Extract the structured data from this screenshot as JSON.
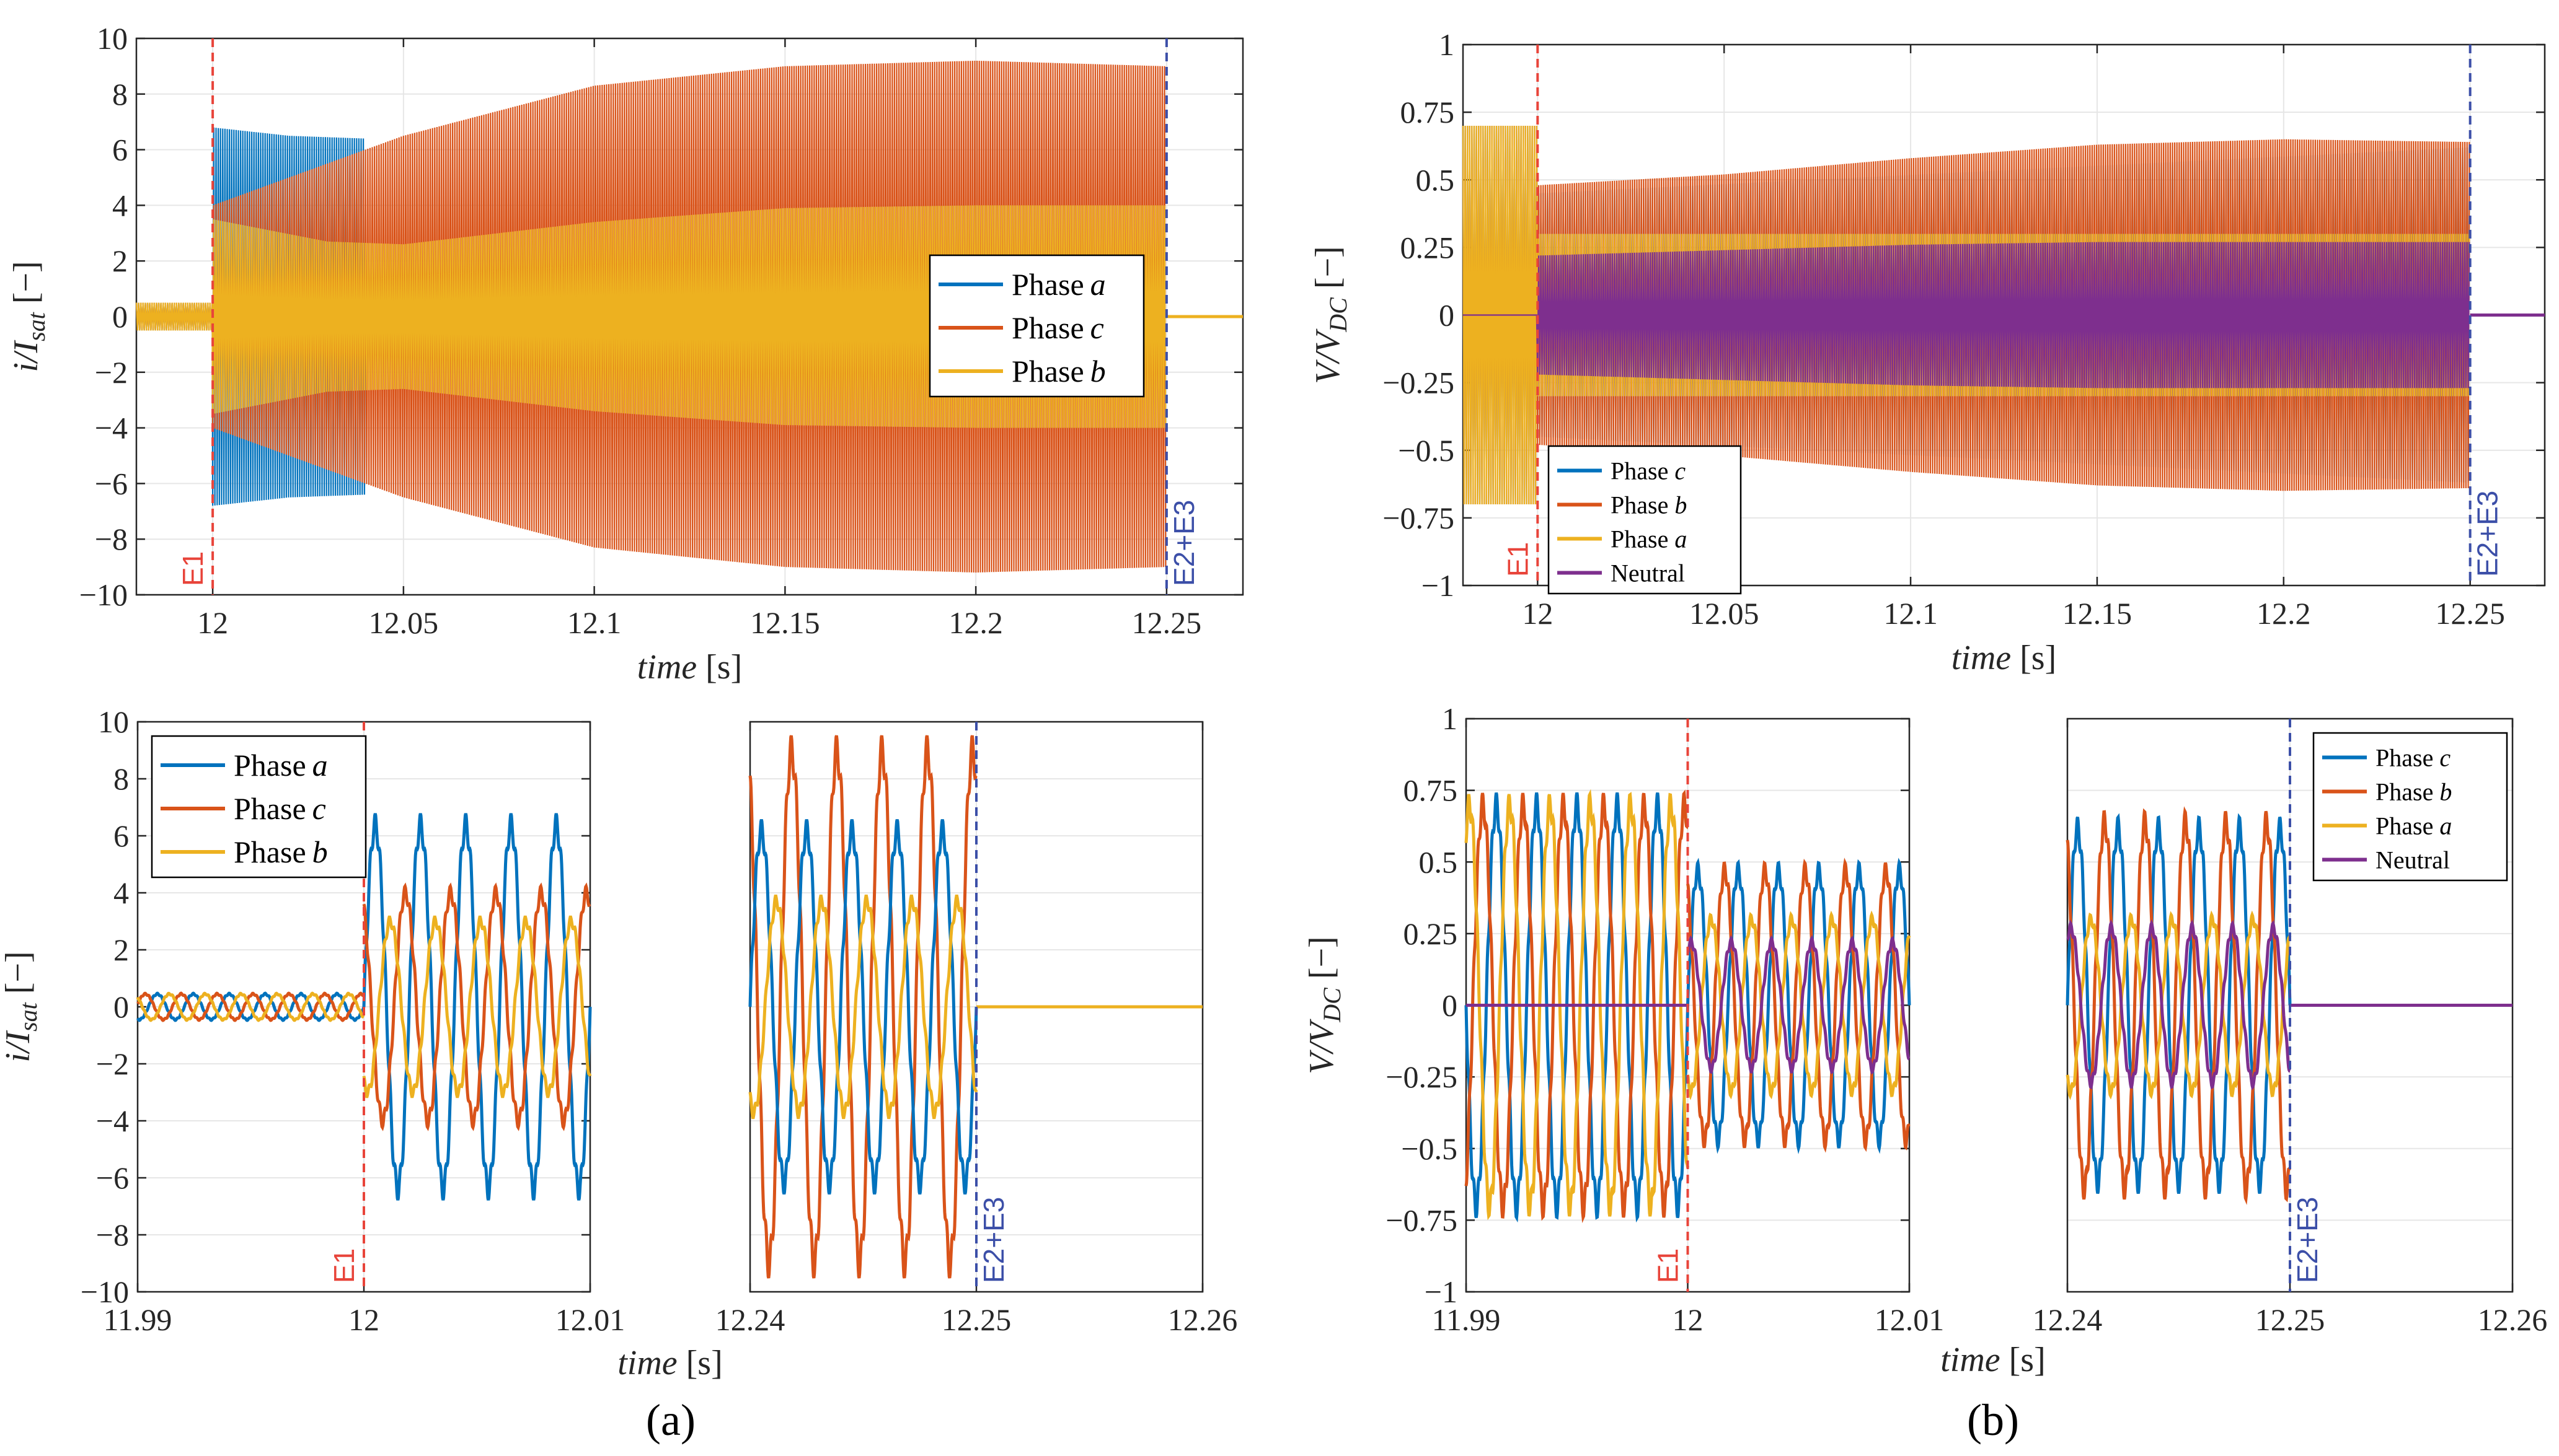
{
  "colors": {
    "phase_a": "#0072BD",
    "phase_c": "#D95319",
    "phase_b": "#EDB120",
    "neutral": "#7E2F8E",
    "event_e1": "#E8443A",
    "event_e23": "#3C4FA8",
    "grid": "#E6E6E6",
    "axis": "#262626"
  },
  "captions": {
    "a": "(a)",
    "b": "(b)"
  },
  "chart_data": [
    {
      "id": "a_top",
      "type": "line",
      "title": "",
      "xlabel_var": "time",
      "xlabel_unit": "[s]",
      "ylabel_var": "i/I",
      "ylabel_sub": "sat",
      "ylabel_unit": "[−]",
      "xlim": [
        11.98,
        12.27
      ],
      "ylim": [
        -10,
        10
      ],
      "xticks": [
        12,
        12.05,
        12.1,
        12.15,
        12.2,
        12.25
      ],
      "xtick_labels": [
        "12",
        "12.05",
        "12.1",
        "12.15",
        "12.2",
        "12.25"
      ],
      "yticks": [
        -10,
        -8,
        -6,
        -4,
        -2,
        0,
        2,
        4,
        6,
        8,
        10
      ],
      "ytick_labels": [
        "−10",
        "−8",
        "−6",
        "−4",
        "−2",
        "0",
        "2",
        "4",
        "6",
        "8",
        "10"
      ],
      "grid": true,
      "legend_position": "right",
      "legend": [
        {
          "label": "Phase",
          "italic": "a",
          "color_key": "phase_a"
        },
        {
          "label": "Phase",
          "italic": "c",
          "color_key": "phase_c"
        },
        {
          "label": "Phase",
          "italic": "b",
          "color_key": "phase_b"
        }
      ],
      "events": [
        {
          "label": "E1",
          "x": 12.0,
          "color_key": "event_e1"
        },
        {
          "label": "E2+E3",
          "x": 12.25,
          "color_key": "event_e23"
        }
      ],
      "series": [
        {
          "name": "Phase a",
          "color_key": "phase_a",
          "pre_amp": 0.5,
          "envelope_x": [
            12.0,
            12.02,
            12.04,
            12.0401
          ],
          "envelope_amp": [
            6.8,
            6.5,
            6.4,
            0
          ],
          "end_x": 12.25
        },
        {
          "name": "Phase c",
          "color_key": "phase_c",
          "pre_amp": 0.5,
          "envelope_x": [
            12.0,
            12.05,
            12.1,
            12.15,
            12.2,
            12.25
          ],
          "envelope_amp": [
            4.0,
            6.5,
            8.3,
            9.0,
            9.2,
            9.0
          ],
          "end_x": 12.25
        },
        {
          "name": "Phase b",
          "color_key": "phase_b",
          "pre_amp": 0.5,
          "envelope_x": [
            12.0,
            12.03,
            12.05,
            12.1,
            12.15,
            12.2,
            12.25
          ],
          "envelope_amp": [
            3.5,
            2.7,
            2.6,
            3.4,
            3.9,
            4.0,
            4.0
          ],
          "end_x": 12.25
        }
      ]
    },
    {
      "id": "b_top",
      "type": "line",
      "title": "",
      "xlabel_var": "time",
      "xlabel_unit": "[s]",
      "ylabel_var": "V/V",
      "ylabel_sub": "DC",
      "ylabel_unit": "[−]",
      "xlim": [
        11.98,
        12.27
      ],
      "ylim": [
        -1,
        1
      ],
      "xticks": [
        12,
        12.05,
        12.1,
        12.15,
        12.2,
        12.25
      ],
      "xtick_labels": [
        "12",
        "12.05",
        "12.1",
        "12.15",
        "12.2",
        "12.25"
      ],
      "yticks": [
        -1,
        -0.75,
        -0.5,
        -0.25,
        0,
        0.25,
        0.5,
        0.75,
        1
      ],
      "ytick_labels": [
        "−1",
        "−0.75",
        "−0.5",
        "−0.25",
        "0",
        "0.25",
        "0.5",
        "0.75",
        "1"
      ],
      "grid": true,
      "legend_position": "bottom-left",
      "legend": [
        {
          "label": "Phase",
          "italic": "c",
          "color_key": "phase_a"
        },
        {
          "label": "Phase",
          "italic": "b",
          "color_key": "phase_c"
        },
        {
          "label": "Phase",
          "italic": "a",
          "color_key": "phase_b"
        },
        {
          "label": "Neutral",
          "italic": "",
          "color_key": "neutral"
        }
      ],
      "events": [
        {
          "label": "E1",
          "x": 12.0,
          "color_key": "event_e1"
        },
        {
          "label": "E2+E3",
          "x": 12.25,
          "color_key": "event_e23"
        }
      ],
      "series": [
        {
          "name": "Phase b",
          "color_key": "phase_c",
          "pre_amp": 0.7,
          "envelope_x": [
            12.0,
            12.05,
            12.1,
            12.15,
            12.2,
            12.25
          ],
          "envelope_amp": [
            0.48,
            0.52,
            0.58,
            0.63,
            0.65,
            0.64
          ],
          "end_x": 12.25
        },
        {
          "name": "Phase a",
          "color_key": "phase_b",
          "pre_amp": 0.7,
          "envelope_x": [
            12.0,
            12.25
          ],
          "envelope_amp": [
            0.3,
            0.3
          ],
          "end_x": 12.25
        },
        {
          "name": "Neutral",
          "color_key": "neutral",
          "pre_amp": 0.0,
          "envelope_x": [
            12.0,
            12.05,
            12.1,
            12.15,
            12.2,
            12.25
          ],
          "envelope_amp": [
            0.22,
            0.24,
            0.26,
            0.27,
            0.27,
            0.27
          ],
          "end_x": 12.25
        }
      ]
    },
    {
      "id": "a_bot_left",
      "type": "line",
      "xlabel_var": "time",
      "xlabel_unit": "[s]",
      "ylabel_var": "i/I",
      "ylabel_sub": "sat",
      "ylabel_unit": "[−]",
      "xlim": [
        11.99,
        12.01
      ],
      "ylim": [
        -10,
        10
      ],
      "xticks": [
        11.99,
        12,
        12.01
      ],
      "xtick_labels": [
        "11.99",
        "12",
        "12.01"
      ],
      "yticks": [
        -10,
        -8,
        -6,
        -4,
        -2,
        0,
        2,
        4,
        6,
        8,
        10
      ],
      "ytick_labels": [
        "−10",
        "−8",
        "−6",
        "−4",
        "−2",
        "0",
        "2",
        "4",
        "6",
        "8",
        "10"
      ],
      "grid": true,
      "legend_position": "top-left",
      "legend": [
        {
          "label": "Phase",
          "italic": "a",
          "color_key": "phase_a"
        },
        {
          "label": "Phase",
          "italic": "c",
          "color_key": "phase_c"
        },
        {
          "label": "Phase",
          "italic": "b",
          "color_key": "phase_b"
        }
      ],
      "events": [
        {
          "label": "E1",
          "x": 12.0,
          "color_key": "event_e1"
        }
      ],
      "series": [
        {
          "name": "Phase a",
          "color_key": "phase_a",
          "pre_amp": 0.45,
          "post_amp": 6.4,
          "post_offset": 0,
          "phase_deg": 0
        },
        {
          "name": "Phase c",
          "color_key": "phase_c",
          "pre_amp": 0.45,
          "post_amp": 4.0,
          "post_offset": 0,
          "phase_deg": 120
        },
        {
          "name": "Phase b",
          "color_key": "phase_b",
          "pre_amp": 0.45,
          "post_amp": 3.0,
          "post_offset": 0,
          "phase_deg": 240
        }
      ]
    },
    {
      "id": "a_bot_right",
      "type": "line",
      "xlabel_var": "",
      "xlabel_unit": "",
      "xlim": [
        12.24,
        12.26
      ],
      "ylim": [
        -10,
        10
      ],
      "xticks": [
        12.24,
        12.25,
        12.26
      ],
      "xtick_labels": [
        "12.24",
        "12.25",
        "12.26"
      ],
      "grid": true,
      "events": [
        {
          "label": "E2+E3",
          "x": 12.25,
          "color_key": "event_e23"
        }
      ],
      "series": [
        {
          "name": "Phase c",
          "color_key": "phase_c",
          "amp": 9.0,
          "phase_deg": 120
        },
        {
          "name": "Phase a",
          "color_key": "phase_a",
          "amp": 6.2,
          "phase_deg": 0
        },
        {
          "name": "Phase b",
          "color_key": "phase_b",
          "amp": 3.7,
          "phase_deg": 240
        }
      ]
    },
    {
      "id": "b_bot_left",
      "type": "line",
      "xlabel_var": "time",
      "xlabel_unit": "[s]",
      "ylabel_var": "V/V",
      "ylabel_sub": "DC",
      "ylabel_unit": "[−]",
      "xlim": [
        11.99,
        12.01
      ],
      "ylim": [
        -1,
        1
      ],
      "xticks": [
        11.99,
        12,
        12.01
      ],
      "xtick_labels": [
        "11.99",
        "12",
        "12.01"
      ],
      "yticks": [
        -1,
        -0.75,
        -0.5,
        -0.25,
        0,
        0.25,
        0.5,
        0.75,
        1
      ],
      "ytick_labels": [
        "−1",
        "−0.75",
        "−0.5",
        "−0.25",
        "0",
        "0.25",
        "0.5",
        "0.75",
        "1"
      ],
      "grid": true,
      "events": [
        {
          "label": "E1",
          "x": 12.0,
          "color_key": "event_e1"
        }
      ],
      "series": [
        {
          "name": "Phase c",
          "color_key": "phase_a",
          "pre_amp": 0.7,
          "post_amp": 0.47,
          "phase_deg": 0
        },
        {
          "name": "Phase b",
          "color_key": "phase_c",
          "pre_amp": 0.7,
          "post_amp": 0.47,
          "phase_deg": 120
        },
        {
          "name": "Phase a",
          "color_key": "phase_b",
          "pre_amp": 0.7,
          "post_amp": 0.3,
          "phase_deg": 240
        },
        {
          "name": "Neutral",
          "color_key": "neutral",
          "pre_amp": 0.0,
          "post_amp": 0.22,
          "phase_deg": 60
        }
      ]
    },
    {
      "id": "b_bot_right",
      "type": "line",
      "xlabel_var": "",
      "xlabel_unit": "",
      "xlim": [
        12.24,
        12.26
      ],
      "ylim": [
        -1,
        1
      ],
      "xticks": [
        12.24,
        12.25,
        12.26
      ],
      "xtick_labels": [
        "12.24",
        "12.25",
        "12.26"
      ],
      "grid": true,
      "legend_position": "top-right",
      "legend": [
        {
          "label": "Phase",
          "italic": "c",
          "color_key": "phase_a"
        },
        {
          "label": "Phase",
          "italic": "b",
          "color_key": "phase_c"
        },
        {
          "label": "Phase",
          "italic": "a",
          "color_key": "phase_b"
        },
        {
          "label": "Neutral",
          "italic": "",
          "color_key": "neutral"
        }
      ],
      "events": [
        {
          "label": "E2+E3",
          "x": 12.25,
          "color_key": "event_e23"
        }
      ],
      "series": [
        {
          "name": "Phase c",
          "color_key": "phase_a",
          "amp": 0.62,
          "phase_deg": 0
        },
        {
          "name": "Phase b",
          "color_key": "phase_c",
          "amp": 0.64,
          "phase_deg": 120
        },
        {
          "name": "Phase a",
          "color_key": "phase_b",
          "amp": 0.3,
          "phase_deg": 240
        },
        {
          "name": "Neutral",
          "color_key": "neutral",
          "amp": 0.27,
          "phase_deg": 60
        }
      ]
    }
  ]
}
